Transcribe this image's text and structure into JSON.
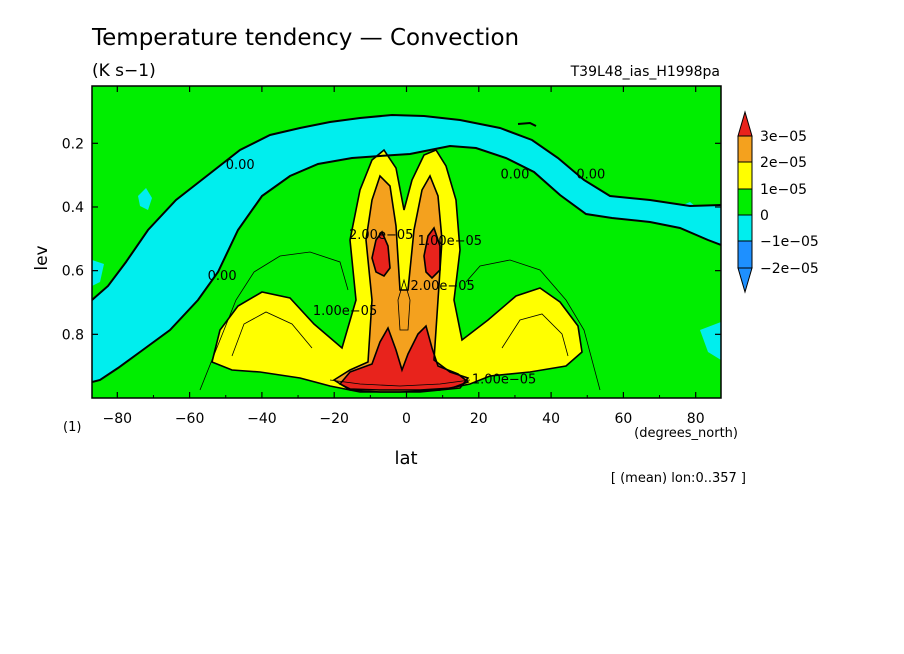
{
  "chart_data": {
    "type": "heatmap",
    "title": "Temperature tendency — Convection",
    "units": "(K s−1)",
    "run_label": "T39L48_ias_H1998pa",
    "xlabel": "lat",
    "xunits": "(degrees_north)",
    "ylabel": "lev",
    "yunits": "(1)",
    "footnote": "[ (mean) lon:0..357 ]",
    "xlim": [
      -87,
      87
    ],
    "ylim": [
      1.0,
      0.02
    ],
    "x_ticks": [
      -80,
      -60,
      -40,
      -20,
      0,
      20,
      40,
      60,
      80
    ],
    "x_tick_labels": [
      "−80",
      "−60",
      "−40",
      "−20",
      "0",
      "20",
      "40",
      "60",
      "80"
    ],
    "y_ticks": [
      0.2,
      0.4,
      0.6,
      0.8
    ],
    "y_tick_labels": [
      "0.2",
      "0.4",
      "0.6",
      "0.8"
    ],
    "colorbar": {
      "levels": [
        {
          "label": "3e−05",
          "color": "#e8231c"
        },
        {
          "label": "2e−05",
          "color": "#f4a11e"
        },
        {
          "label": "1e−05",
          "color": "#ffff00"
        },
        {
          "label": "0",
          "color": "#00ee00"
        },
        {
          "label": "−1e−05",
          "color": "#00eeee"
        },
        {
          "label": "−2e−05",
          "color": "#1e90ff"
        }
      ],
      "colors": {
        "above": "#e8231c",
        "c2to3": "#f4a11e",
        "c1to2": "#ffff00",
        "c0to1": "#00ee00",
        "cm1to0": "#00eeee",
        "below": "#1e90ff"
      }
    },
    "contour_labels": [
      {
        "text": "0.00",
        "lat": -46,
        "lev": 0.28
      },
      {
        "text": "0.00",
        "lat": 30,
        "lev": 0.31
      },
      {
        "text": "0.00",
        "lat": 51,
        "lev": 0.31
      },
      {
        "text": "0.00",
        "lat": -51,
        "lev": 0.63
      },
      {
        "text": "1.00e−05",
        "lat": -17,
        "lev": 0.74
      },
      {
        "text": "2.00e−05",
        "lat": -7,
        "lev": 0.5
      },
      {
        "text": "1.00e−05",
        "lat": 12,
        "lev": 0.52
      },
      {
        "text": "2.00e−05",
        "lat": 10,
        "lev": 0.66
      },
      {
        "text": "1.00e−05",
        "lat": 27,
        "lev": 0.955
      }
    ]
  }
}
